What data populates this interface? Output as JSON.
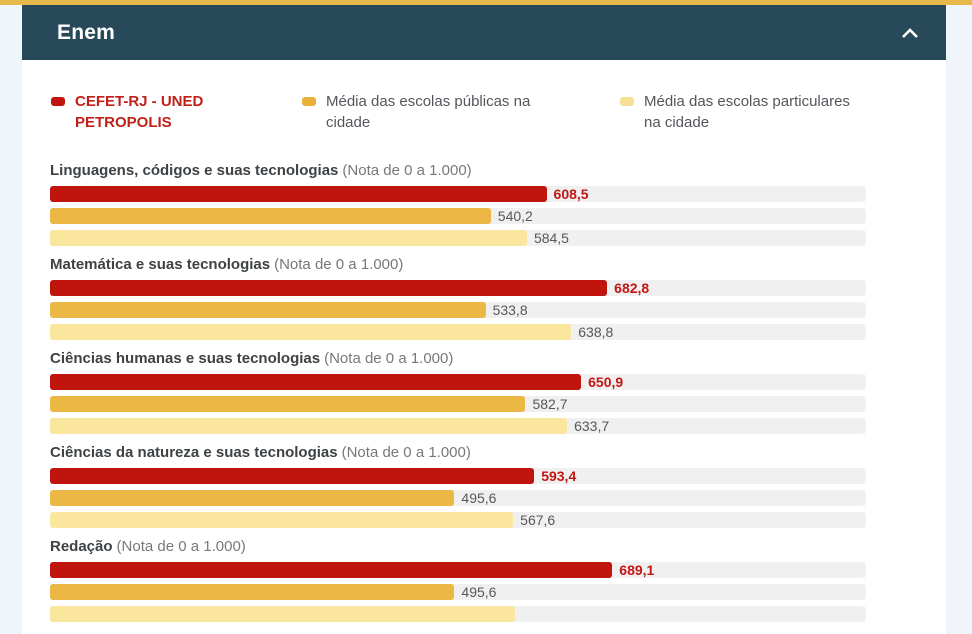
{
  "page": {
    "top_strip_color": "#E7B94C",
    "background_color": "#EFF5FB",
    "card_color": "#FFFFFF"
  },
  "header": {
    "title": "Enem",
    "background_color": "#27495A",
    "collapse_icon": "chevron-up-icon"
  },
  "legend": {
    "items": [
      {
        "label": "CEFET-RJ - UNED PETROPOLIS",
        "swatch_color": "#C0150E",
        "text_color": "#C02018",
        "bold": true
      },
      {
        "label": "Média das escolas públicas na cidade",
        "swatch_color": "#E9B03A",
        "text_color": "#53575B",
        "bold": false
      },
      {
        "label": "Média das escolas particulares na cidade",
        "swatch_color": "#F6E094",
        "text_color": "#53575B",
        "bold": false
      }
    ]
  },
  "chart_data": {
    "type": "bar",
    "orientation": "horizontal",
    "axis_range": [
      0,
      1000
    ],
    "track_color": "#F0F0F0",
    "series": [
      "CEFET-RJ - UNED PETROPOLIS",
      "Média das escolas públicas na cidade",
      "Média das escolas particulares na cidade"
    ],
    "series_colors": [
      "#C0150E",
      "#EBB745",
      "#FAE69D"
    ],
    "legend_position": "top",
    "groups": [
      {
        "title": "Linguagens, códigos e suas tecnologias",
        "note": "(Nota de 0 a 1.000)",
        "values": [
          608.5,
          540.2,
          584.5
        ],
        "value_labels": [
          "608,5",
          "540,2",
          "584,5"
        ]
      },
      {
        "title": "Matemática e suas tecnologias",
        "note": "(Nota de 0 a 1.000)",
        "values": [
          682.8,
          533.8,
          638.8
        ],
        "value_labels": [
          "682,8",
          "533,8",
          "638,8"
        ]
      },
      {
        "title": "Ciências humanas e suas tecnologias",
        "note": "(Nota de 0 a 1.000)",
        "values": [
          650.9,
          582.7,
          633.7
        ],
        "value_labels": [
          "650,9",
          "582,7",
          "633,7"
        ]
      },
      {
        "title": "Ciências da natureza e suas tecnologias",
        "note": "(Nota de 0 a 1.000)",
        "values": [
          593.4,
          495.6,
          567.6
        ],
        "value_labels": [
          "593,4",
          "495,6",
          "567,6"
        ]
      },
      {
        "title": "Redação",
        "note": "(Nota de 0 a 1.000)",
        "values": [
          689.1,
          495.6,
          570
        ],
        "value_labels": [
          "689,1",
          "495,6",
          ""
        ]
      }
    ]
  }
}
